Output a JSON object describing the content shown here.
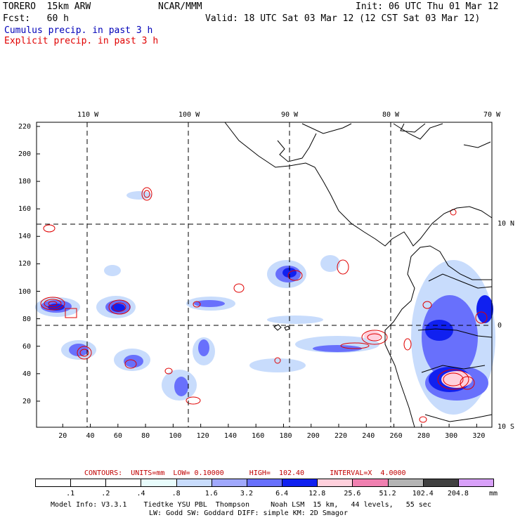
{
  "header": {
    "model": "TORERO  15km ARW",
    "center": "NCAR/MMM",
    "init": "Init: 06 UTC Thu 01 Mar 12",
    "fcst": "Fcst:   60 h",
    "valid": "Valid: 18 UTC Sat 03 Mar 12 (12 CST Sat 03 Mar 12)",
    "legend_cumulus": "Cumulus precip. in past 3 h",
    "legend_explicit": "Explicit precip. in past 3 h"
  },
  "axes": {
    "top_labels": [
      "110 W",
      "100 W",
      "90 W",
      "80 W",
      "70 W"
    ],
    "right_labels": [
      "10 N",
      "0",
      "10 S"
    ],
    "x_ticks": [
      "20",
      "40",
      "60",
      "80",
      "100",
      "120",
      "140",
      "160",
      "180",
      "200",
      "220",
      "240",
      "260",
      "280",
      "300",
      "320"
    ],
    "y_ticks": [
      "20",
      "40",
      "60",
      "80",
      "100",
      "120",
      "140",
      "160",
      "180",
      "200",
      "220"
    ]
  },
  "colorbar": {
    "contours_label": "CONTOURS:  UNITS=mm  LOW= 0.10000      HIGH=  102.40      INTERVAL=X  4.0000",
    "levels": [
      ".1",
      ".2",
      ".4",
      ".8",
      "1.6",
      "3.2",
      "6.4",
      "12.8",
      "25.6",
      "51.2",
      "102.4",
      "204.8"
    ],
    "colors": [
      "#ffffff",
      "#ffffff",
      "#ffffff",
      "#e8fcfc",
      "#c8dcfc",
      "#a0a8fc",
      "#6870fc",
      "#1020f0",
      "#ffd0dc",
      "#f080b0",
      "#b4b4b4",
      "#404040",
      "#d8a0f8"
    ],
    "unit": "mm"
  },
  "footer": {
    "line1": "Model Info: V3.3.1    Tiedtke YSU PBL  Thompson     Noah LSM  15 km,   44 levels,   55 sec",
    "line2": "LW: Godd SW: Goddard DIFF: simple KM: 2D Smagor"
  }
}
